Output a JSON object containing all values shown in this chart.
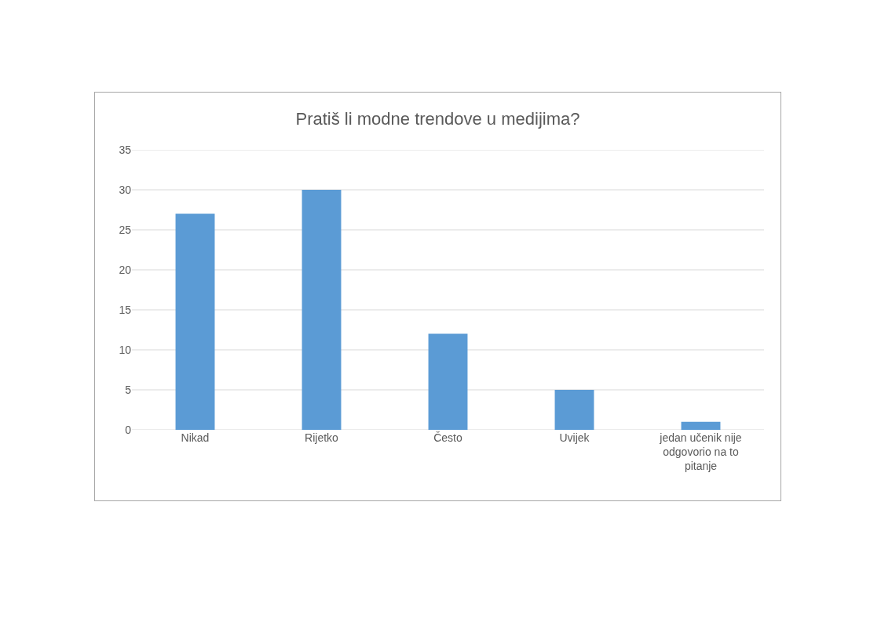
{
  "chart_data": {
    "type": "bar",
    "title": "Pratiš li modne trendove u medijima?",
    "categories": [
      "Nikad",
      "Rijetko",
      "Često",
      "Uvijek",
      "jedan učenik nije odgovorio na to pitanje"
    ],
    "values": [
      27,
      30,
      12,
      5,
      1
    ],
    "color": "#5b9bd5",
    "ylim": [
      0,
      35
    ],
    "yticks": [
      0,
      5,
      10,
      15,
      20,
      25,
      30,
      35
    ],
    "grid": "y"
  }
}
